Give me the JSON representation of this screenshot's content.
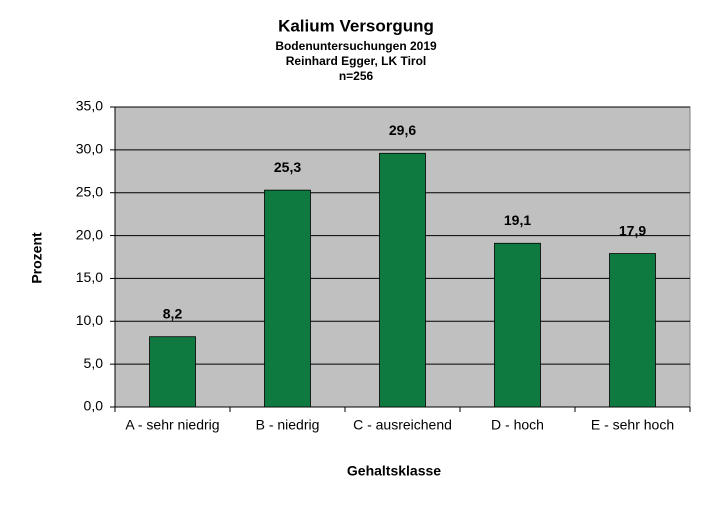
{
  "chart_data": {
    "type": "bar",
    "title": "Kalium Versorgung",
    "subtitle": [
      "Bodenuntersuchungen 2019",
      "Reinhard Egger, LK Tirol",
      "n=256"
    ],
    "x_label": "Gehaltsklasse",
    "y_label": "Prozent",
    "categories": [
      "A - sehr niedrig",
      "B - niedrig",
      "C - ausreichend",
      "D - hoch",
      "E - sehr hoch"
    ],
    "values": [
      8.2,
      25.3,
      29.6,
      19.1,
      17.9
    ],
    "value_labels": [
      "8,2",
      "25,3",
      "29,6",
      "19,1",
      "17,9"
    ],
    "color": "#0f7a3f",
    "ylim": [
      0,
      35
    ],
    "yticks": [
      {
        "value": 0,
        "label": "0,0"
      },
      {
        "value": 5,
        "label": "5,0"
      },
      {
        "value": 10,
        "label": "10,0"
      },
      {
        "value": 15,
        "label": "15,0"
      },
      {
        "value": 20,
        "label": "20,0"
      },
      {
        "value": 25,
        "label": "25,0"
      },
      {
        "value": 30,
        "label": "30,0"
      },
      {
        "value": 35,
        "label": "35,0"
      }
    ],
    "grid": true
  }
}
